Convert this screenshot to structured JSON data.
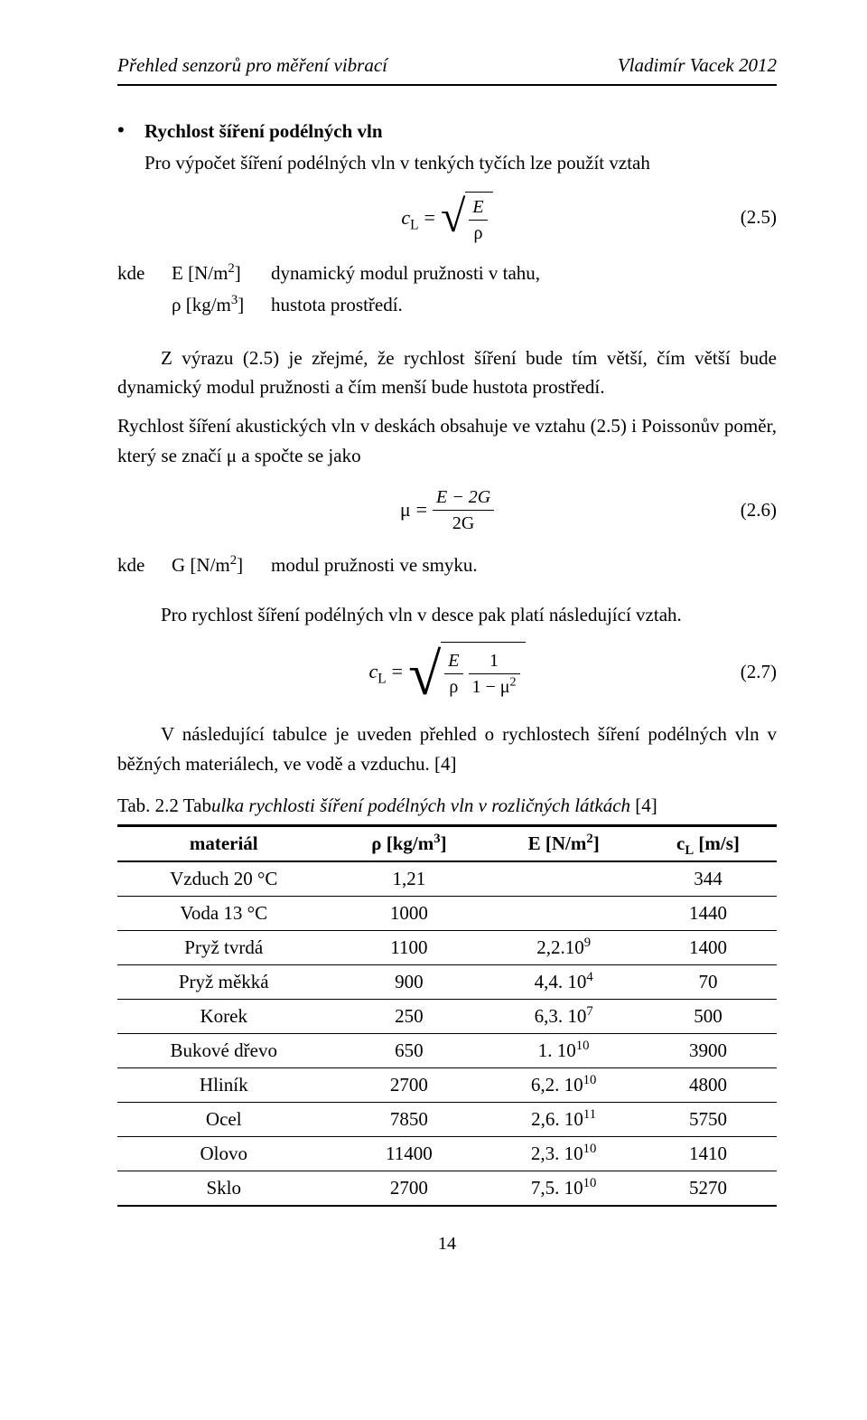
{
  "header": {
    "left": "Přehled senzorů pro měření vibrací",
    "right": "Vladimír Vacek 2012"
  },
  "section1": {
    "title": "Rychlost šíření podélných vln",
    "intro": "Pro výpočet šíření podélných vln v tenkých tyčích lze použít vztah"
  },
  "eq25": {
    "lhs_c": "c",
    "lhs_sub": "L",
    "eq": "=",
    "num": "E",
    "den": "ρ",
    "num_label": "(2.5)"
  },
  "where1": {
    "kde": "kde",
    "rows": [
      {
        "sym_html": "E [N/m<sup>2</sup>]",
        "desc": "dynamický modul pružnosti v tahu,"
      },
      {
        "sym_html": "ρ [kg/m<sup>3</sup>]",
        "desc": "hustota prostředí."
      }
    ]
  },
  "para2": "Z výrazu (2.5) je zřejmé, že rychlost šíření bude tím větší, čím větší bude dynamický modul pružnosti a čím menší bude hustota prostředí.",
  "para3": "Rychlost šíření akustických vln v deskách obsahuje ve vztahu (2.5) i Poissonův poměr, který se značí μ a spočte se jako",
  "eq26": {
    "mu": "μ",
    "eq": "=",
    "num": "E − 2G",
    "den": "2G",
    "num_label": "(2.6)"
  },
  "where2": {
    "kde": "kde",
    "sym_html": "G [N/m<sup>2</sup>]",
    "desc": "modul pružnosti ve smyku."
  },
  "para4": "Pro rychlost šíření podélných vln v desce pak platí následující vztah.",
  "eq27": {
    "lhs_c": "c",
    "lhs_sub": "L",
    "eq": "=",
    "f1_num": "E",
    "f1_den": "ρ",
    "f2_num": "1",
    "f2_den_html": "1 − <span class=\"nonit\">μ</span><sup>2</sup>",
    "num_label": "(2.7)"
  },
  "para5": "V následující tabulce je uveden přehled o rychlostech šíření podélných vln v běžných materiálech, ve vodě a vzduchu. [4]",
  "table": {
    "caption_prefix": "Tab. 2.2 Tab",
    "caption_italic": "ulka rychlosti šíření podélných vln v rozličných látkách",
    "caption_suffix": " [4]",
    "columns_html": [
      "materiál",
      "<b>ρ</b> [kg/m<sup>3</sup>]",
      "<b>E</b> [N/m<sup>2</sup>]",
      "<b>c</b><sub>L</sub> [m/s]"
    ],
    "rows": [
      [
        "Vzduch 20 °C",
        "1,21",
        "",
        "344"
      ],
      [
        "Voda 13 °C",
        "1000",
        "",
        "1440"
      ],
      [
        "Pryž tvrdá",
        "1100",
        "2,2.10<sup>9</sup>",
        "1400"
      ],
      [
        "Pryž měkká",
        "900",
        "4,4. 10<sup>4</sup>",
        "70"
      ],
      [
        "Korek",
        "250",
        "6,3. 10<sup>7</sup>",
        "500"
      ],
      [
        "Bukové dřevo",
        "650",
        "1. 10<sup>10</sup>",
        "3900"
      ],
      [
        "Hliník",
        "2700",
        "6,2. 10<sup>10</sup>",
        "4800"
      ],
      [
        "Ocel",
        "7850",
        "2,6. 10<sup>11</sup>",
        "5750"
      ],
      [
        "Olovo",
        "11400",
        "2,3. 10<sup>10</sup>",
        "1410"
      ],
      [
        "Sklo",
        "2700",
        "7,5. 10<sup>10</sup>",
        "5270"
      ]
    ]
  },
  "pagenum": "14"
}
